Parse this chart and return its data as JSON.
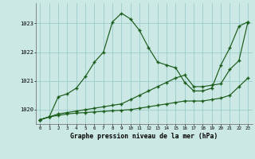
{
  "title": "Graphe pression niveau de la mer (hPa)",
  "bg_color": "#cce8e4",
  "grid_color": "#99cccc",
  "line_color": "#1a5c1a",
  "xlim": [
    -0.5,
    23.5
  ],
  "ylim": [
    1019.5,
    1023.7
  ],
  "yticks": [
    1020,
    1021,
    1022,
    1023
  ],
  "xticks": [
    0,
    1,
    2,
    3,
    4,
    5,
    6,
    7,
    8,
    9,
    10,
    11,
    12,
    13,
    14,
    15,
    16,
    17,
    18,
    19,
    20,
    21,
    22,
    23
  ],
  "line1_x": [
    0,
    1,
    2,
    3,
    4,
    5,
    6,
    7,
    8,
    9,
    10,
    11,
    12,
    13,
    14,
    15,
    16,
    17,
    18,
    19,
    20,
    21,
    22,
    23
  ],
  "line1_y": [
    1019.65,
    1019.75,
    1020.45,
    1020.55,
    1020.75,
    1021.15,
    1021.65,
    1022.0,
    1023.05,
    1023.35,
    1023.15,
    1022.75,
    1022.15,
    1021.65,
    1021.55,
    1021.45,
    1020.95,
    1020.65,
    1020.65,
    1020.75,
    1021.55,
    1022.15,
    1022.9,
    1023.05
  ],
  "line2_x": [
    0,
    1,
    2,
    3,
    4,
    5,
    6,
    7,
    8,
    9,
    10,
    11,
    12,
    13,
    14,
    15,
    16,
    17,
    18,
    19,
    20,
    21,
    22,
    23
  ],
  "line2_y": [
    1019.65,
    1019.75,
    1019.85,
    1019.9,
    1019.95,
    1020.0,
    1020.05,
    1020.1,
    1020.15,
    1020.2,
    1020.35,
    1020.5,
    1020.65,
    1020.8,
    1020.95,
    1021.1,
    1021.2,
    1020.8,
    1020.8,
    1020.85,
    1020.9,
    1021.4,
    1021.7,
    1023.05
  ],
  "line3_x": [
    0,
    1,
    2,
    3,
    4,
    5,
    6,
    7,
    8,
    9,
    10,
    11,
    12,
    13,
    14,
    15,
    16,
    17,
    18,
    19,
    20,
    21,
    22,
    23
  ],
  "line3_y": [
    1019.65,
    1019.75,
    1019.8,
    1019.85,
    1019.88,
    1019.9,
    1019.92,
    1019.94,
    1019.96,
    1019.98,
    1020.0,
    1020.05,
    1020.1,
    1020.15,
    1020.2,
    1020.25,
    1020.3,
    1020.3,
    1020.3,
    1020.35,
    1020.4,
    1020.5,
    1020.8,
    1021.1
  ]
}
